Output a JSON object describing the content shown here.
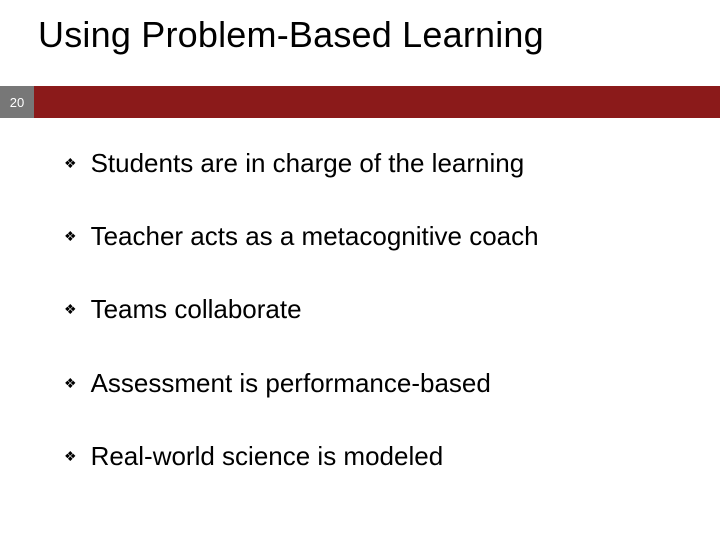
{
  "slide": {
    "title": "Using Problem-Based Learning",
    "page_number": "20",
    "accent_bar_color": "#8b1a1a",
    "pagebox_bg": "#777777",
    "title_fontsize": 36,
    "body_fontsize": 26,
    "bullet_glyph": "❖",
    "bullets": [
      {
        "text": "Students are in charge of the learning"
      },
      {
        "text": "Teacher acts as a metacognitive coach"
      },
      {
        "text": "Teams collaborate"
      },
      {
        "text": "Assessment is performance-based"
      },
      {
        "text": "Real-world science is modeled"
      }
    ]
  }
}
